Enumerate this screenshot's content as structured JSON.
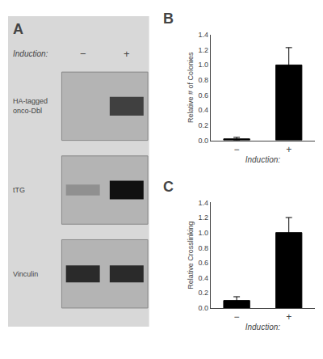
{
  "chart_data": [
    {
      "type": "blot",
      "title": "A",
      "xlabel": "Induction:",
      "categories": [
        "−",
        "+"
      ],
      "annotations": [
        "HA-tagged\nonco-Dbl",
        "tTG",
        "Vinculin"
      ]
    },
    {
      "type": "bar",
      "title": "B",
      "categories": [
        "−",
        "+"
      ],
      "values": [
        0.02,
        1.0
      ],
      "errors": [
        0.02,
        0.23
      ],
      "color": "#000000",
      "xlabel": "Induction:",
      "ylabel": "Relative # of Colonies",
      "ylim": [
        0,
        1.4
      ],
      "yticks": [
        {
          "value": 0,
          "label": "0.0"
        },
        0.2,
        0.4,
        0.6,
        0.8,
        {
          "value": 1,
          "label": "1.0"
        },
        1.2,
        1.4
      ],
      "grid": false
    },
    {
      "type": "bar",
      "title": "C",
      "categories": [
        "−",
        "+"
      ],
      "values": [
        0.1,
        1.0
      ],
      "errors": [
        0.05,
        0.2
      ],
      "color": "#000000",
      "xlabel": "Induction:",
      "ylabel": "Relative Crosslinking",
      "ylim": [
        0,
        1.4
      ],
      "yticks": [
        {
          "value": 0,
          "label": "0.0"
        },
        0.2,
        0.4,
        0.6,
        0.8,
        {
          "value": 1,
          "label": "1.0"
        },
        1.2,
        1.4
      ],
      "grid": false
    }
  ]
}
